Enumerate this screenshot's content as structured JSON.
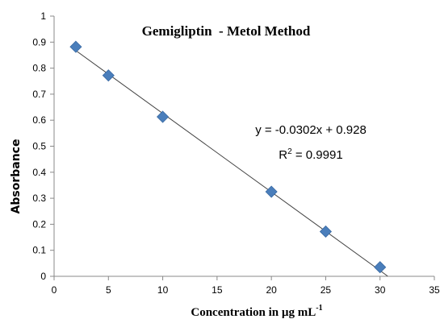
{
  "chart_data": {
    "type": "scatter",
    "title": "Gemigliptin  - Metol Method",
    "xlabel_main": "Concentration in µg mL",
    "xlabel_sup": "-1",
    "ylabel": "Absorbance",
    "xlim": [
      0,
      35
    ],
    "ylim": [
      0,
      1
    ],
    "x_ticks": [
      "0",
      "5",
      "10",
      "15",
      "20",
      "25",
      "30",
      "35"
    ],
    "y_ticks": [
      "0",
      "0.1",
      "0.2",
      "0.3",
      "0.4",
      "0.5",
      "0.6",
      "0.7",
      "0.8",
      "0.9",
      "1"
    ],
    "grid": false,
    "marker_color": "#4a7ebb",
    "series": [
      {
        "x": [
          2,
          5,
          10,
          20,
          25,
          30
        ],
        "y": [
          0.882,
          0.772,
          0.613,
          0.325,
          0.172,
          0.035
        ]
      }
    ],
    "trendline": {
      "slope": -0.0302,
      "intercept": 0.928,
      "x_range": [
        2,
        30.7
      ]
    },
    "equation": "y = -0.0302x + 0.928",
    "r2_prefix": "R",
    "r2_sup": "2",
    "r2_suffix": " = 0.9991"
  }
}
